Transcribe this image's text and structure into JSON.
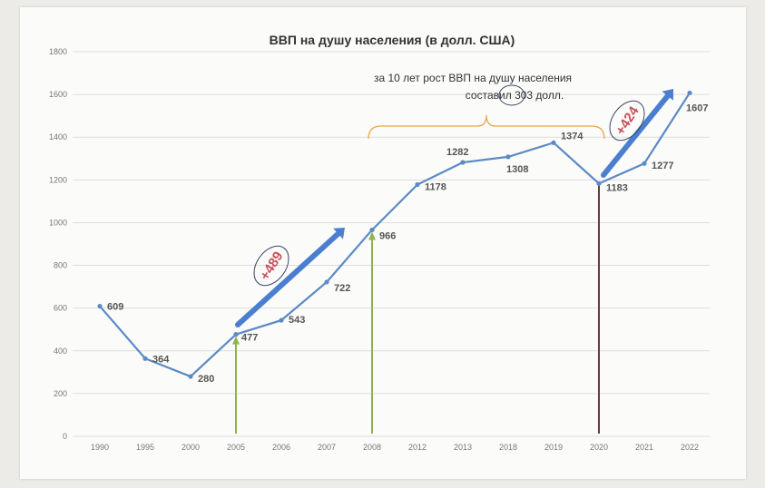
{
  "chart_data": {
    "type": "line",
    "title": "ВВП на душу населения (в долл. США)",
    "categories": [
      "1990",
      "1995",
      "2000",
      "2005",
      "2006",
      "2007",
      "2008",
      "2012",
      "2013",
      "2018",
      "2019",
      "2020",
      "2021",
      "2022"
    ],
    "series": [
      {
        "values": [
          609,
          364,
          280,
          477,
          543,
          722,
          966,
          1178,
          1282,
          1308,
          1374,
          1183,
          1277,
          1607
        ]
      }
    ],
    "ylim": [
      0,
      1800
    ],
    "yticks": [
      0,
      200,
      400,
      600,
      800,
      1000,
      1200,
      1400,
      1600,
      1800
    ],
    "grid": true,
    "xlabel": "",
    "ylabel": ""
  },
  "annotations": {
    "brace_text_line1": "за 10 лет рост ВВП на душу населения",
    "brace_text_line2_prefix": "составил ",
    "brace_text_circled": "303",
    "brace_text_line2_suffix": " долл.",
    "growth_label_2005": "+489",
    "growth_label_2020": "+424"
  },
  "colors": {
    "line": "#5b8ac4",
    "grid": "#dddddd",
    "arrow": "#4a7fd0",
    "brace": "#e8a64a",
    "green_marker": "#8fb44a",
    "dark_marker": "#6a3a3a",
    "highlight_label": "#c8505a"
  }
}
